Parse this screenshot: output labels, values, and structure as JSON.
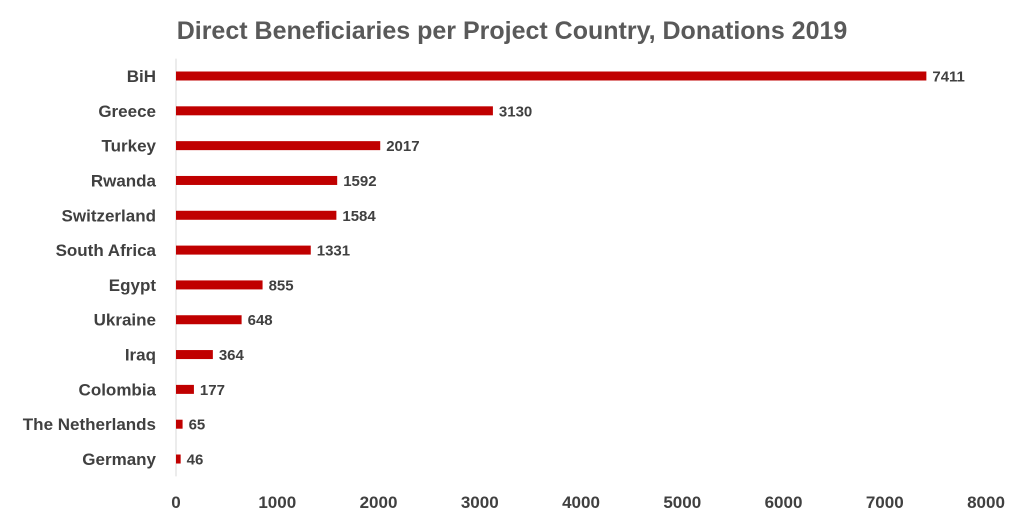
{
  "chart_data": {
    "type": "bar",
    "orientation": "horizontal",
    "title": "Direct Beneficiaries per Project Country, Donations 2019",
    "xlabel": "",
    "ylabel": "",
    "categories": [
      "BiH",
      "Greece",
      "Turkey",
      "Rwanda",
      "Switzerland",
      "South Africa",
      "Egypt",
      "Ukraine",
      "Iraq",
      "Colombia",
      "The Netherlands",
      "Germany"
    ],
    "values": [
      7411,
      3130,
      2017,
      1592,
      1584,
      1331,
      855,
      648,
      364,
      177,
      65,
      46
    ],
    "value_labels": [
      "7411",
      "3130",
      "2017",
      "1592",
      "1584",
      "1331",
      "855",
      "648",
      "364",
      "177",
      "65",
      "46"
    ],
    "xlim": [
      0,
      8000
    ],
    "xticks": [
      0,
      1000,
      2000,
      3000,
      4000,
      5000,
      6000,
      7000,
      8000
    ],
    "xtick_labels": [
      "0",
      "1000",
      "2000",
      "3000",
      "4000",
      "5000",
      "6000",
      "7000",
      "8000"
    ],
    "grid": false,
    "legend": "none",
    "bar_color": "#C00000"
  }
}
